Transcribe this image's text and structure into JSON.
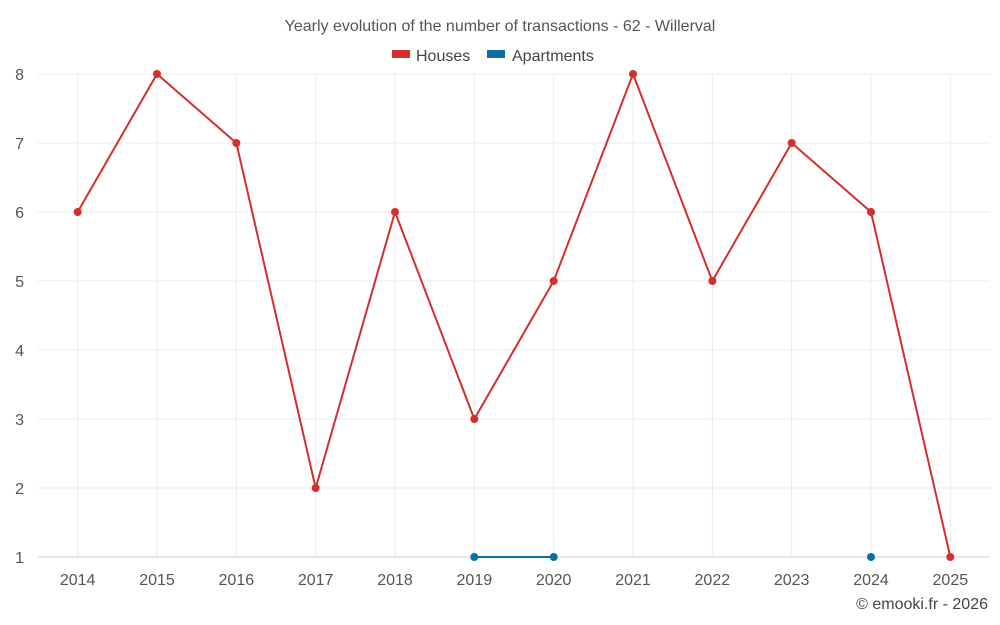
{
  "chart_data": {
    "type": "line",
    "title": "Yearly evolution of the number of transactions - 62 - Willerval",
    "xlabel": "",
    "ylabel": "",
    "categories": [
      "2014",
      "2015",
      "2016",
      "2017",
      "2018",
      "2019",
      "2020",
      "2021",
      "2022",
      "2023",
      "2024",
      "2025"
    ],
    "ylim": [
      1,
      8
    ],
    "yticks": [
      "1",
      "2",
      "3",
      "4",
      "5",
      "6",
      "7",
      "8"
    ],
    "grid": true,
    "legend_position": "top-center",
    "series": [
      {
        "name": "Houses",
        "color": "#d32f2f",
        "values": [
          6,
          8,
          7,
          2,
          6,
          3,
          5,
          8,
          5,
          7,
          6,
          1
        ]
      },
      {
        "name": "Apartments",
        "color": "#0b6fa4",
        "values": [
          null,
          null,
          null,
          null,
          null,
          1,
          1,
          null,
          null,
          null,
          1,
          null
        ]
      }
    ]
  },
  "credit": "© emooki.fr - 2026"
}
